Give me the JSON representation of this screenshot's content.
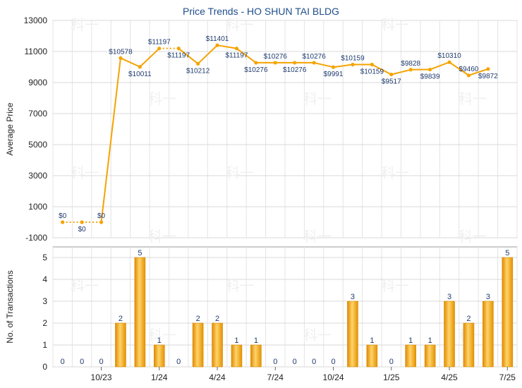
{
  "chart_data": [
    {
      "type": "line",
      "title": "Price Trends - HO SHUN TAI BLDG",
      "ylabel": "Average Price",
      "ylim": [
        -1000,
        13000
      ],
      "yticks": [
        -1000,
        1000,
        3000,
        5000,
        7000,
        9000,
        11000,
        13000
      ],
      "color": "#f5a300",
      "values": [
        0,
        0,
        0,
        10578,
        10011,
        11197,
        11197,
        10212,
        11401,
        11197,
        10276,
        10276,
        10276,
        10276,
        9991,
        10159,
        10159,
        9517,
        9828,
        9839,
        10310,
        9460,
        9872
      ],
      "labels": [
        "$0",
        "$0",
        "$0",
        "$10578",
        "$10011",
        "$11197",
        "$11197",
        "$10212",
        "$11401",
        "$11197",
        "$10276",
        "$10276",
        "$10276",
        "$10276",
        "$9991",
        "$10159",
        "$10159",
        "$9517",
        "$9828",
        "$9839",
        "$10310",
        "$9460",
        "$9872"
      ],
      "label_pos": [
        "above",
        "below",
        "above",
        "above",
        "below",
        "above",
        "below",
        "below",
        "above",
        "below",
        "below",
        "above",
        "below",
        "above",
        "below",
        "above",
        "below",
        "below",
        "above",
        "below",
        "above",
        "above",
        "below"
      ],
      "dotted_segments": [
        0,
        1,
        5
      ],
      "watermark": "科一"
    },
    {
      "type": "bar",
      "ylabel": "No. of Transactions",
      "ylim": [
        0,
        5
      ],
      "yticks": [
        0,
        1,
        2,
        3,
        4,
        5
      ],
      "color": "#f5a300",
      "values": [
        0,
        0,
        0,
        2,
        5,
        1,
        0,
        2,
        2,
        1,
        1,
        0,
        0,
        0,
        0,
        3,
        1,
        0,
        1,
        1,
        3,
        2,
        3,
        5
      ],
      "x_ticks": [
        {
          "index": 2,
          "label": "10/23"
        },
        {
          "index": 5,
          "label": "1/24"
        },
        {
          "index": 8,
          "label": "4/24"
        },
        {
          "index": 11,
          "label": "7/24"
        },
        {
          "index": 14,
          "label": "10/24"
        },
        {
          "index": 17,
          "label": "1/25"
        },
        {
          "index": 20,
          "label": "4/25"
        },
        {
          "index": 23,
          "label": "7/25"
        }
      ]
    }
  ]
}
